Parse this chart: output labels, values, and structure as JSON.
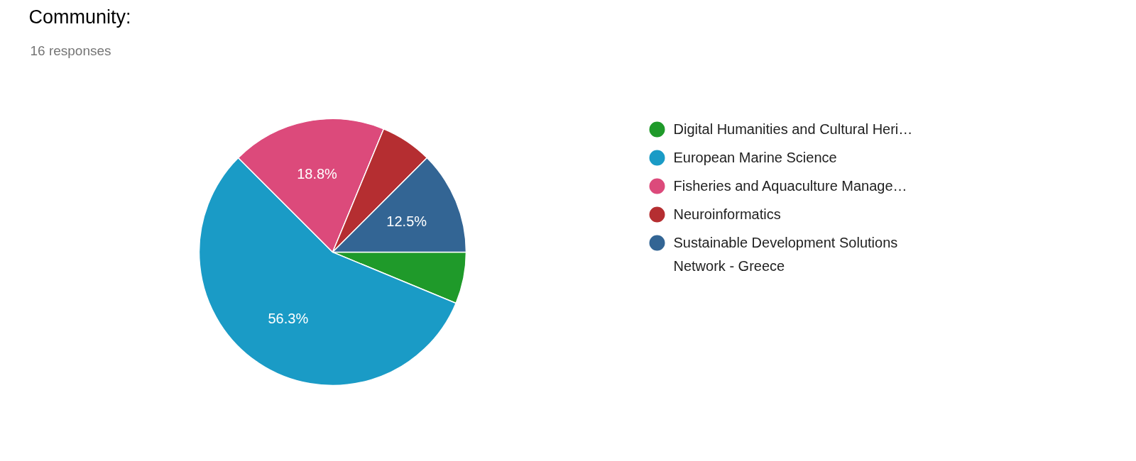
{
  "chart_data": {
    "type": "pie",
    "title": "Community:",
    "subtitle": "16 responses",
    "categories": [
      "Digital Humanities and Cultural Heri…",
      "European Marine Science",
      "Fisheries and Aquaculture Manage…",
      "Neuroinformatics",
      "Sustainable Development Solutions\nNetwork - Greece"
    ],
    "values": [
      6.25,
      56.25,
      18.75,
      6.25,
      12.5
    ],
    "colors": [
      "#1f9a2a",
      "#1a9bc6",
      "#dc4a7b",
      "#b52e31",
      "#336594"
    ],
    "value_labels": [
      null,
      "56.3%",
      "18.8%",
      null,
      "12.5%"
    ],
    "legend": "right"
  }
}
